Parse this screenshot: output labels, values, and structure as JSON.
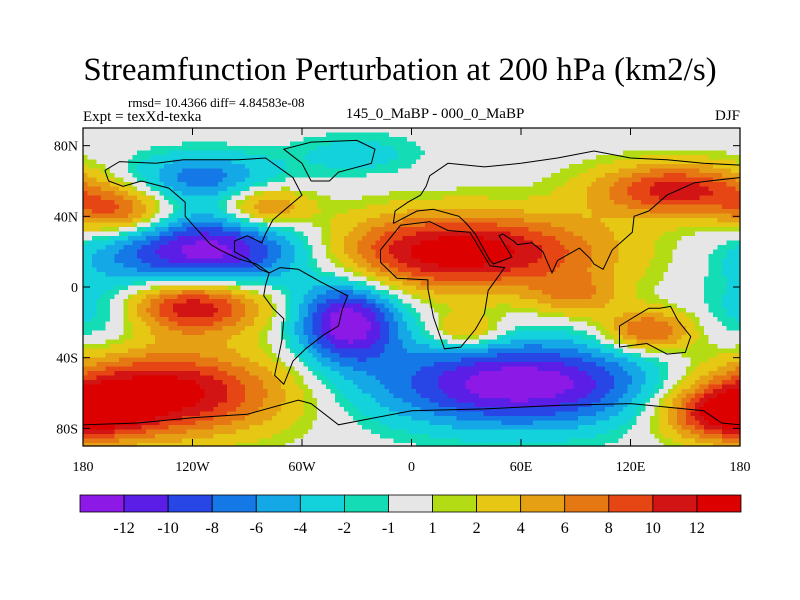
{
  "title": "Streamfunction Perturbation at 200 hPa (km2/s)",
  "stats": "rmsd= 10.4366 diff= 4.84583e-08",
  "expt": "Expt = texXd-texka",
  "diff_label": "145_0_MaBP - 000_0_MaBP",
  "season": "DJF",
  "chart_data": {
    "type": "heatmap",
    "title": "Streamfunction Perturbation at 200 hPa (km2/s)",
    "variable": "Streamfunction Perturbation",
    "level": "200 hPa",
    "units": "km2/s",
    "season": "DJF",
    "x_ticks": [
      "180",
      "120W",
      "60W",
      "0",
      "60E",
      "120E",
      "180"
    ],
    "x_tick_values": [
      -180,
      -120,
      -60,
      0,
      60,
      120,
      180
    ],
    "y_ticks": [
      "80N",
      "40N",
      "0",
      "40S",
      "80S"
    ],
    "y_tick_values": [
      80,
      40,
      0,
      -40,
      -80
    ],
    "xlim": [
      -180,
      180
    ],
    "ylim": [
      -90,
      90
    ],
    "contour_levels": [
      -12,
      -10,
      -8,
      -6,
      -4,
      -2,
      -1,
      1,
      2,
      4,
      6,
      8,
      10,
      12
    ],
    "colorbar_labels": [
      "-12",
      "-10",
      "-8",
      "-6",
      "-4",
      "-2",
      "-1",
      "1",
      "2",
      "4",
      "6",
      "8",
      "10",
      "12"
    ],
    "colors": [
      "#8c19e6",
      "#5a1ee6",
      "#2846e6",
      "#1478e6",
      "#14a8e6",
      "#14d2dc",
      "#14dcb4",
      "#e6e6e6",
      "#b4dc14",
      "#e6c814",
      "#e6a014",
      "#e67814",
      "#e64614",
      "#d21414",
      "#dc0000"
    ],
    "features": [
      {
        "value": -14,
        "lon": -110,
        "lat": 20,
        "rlon": 60,
        "rlat": 22,
        "note": "negative anomaly"
      },
      {
        "value": -14,
        "lon": -35,
        "lat": -20,
        "rlon": 28,
        "rlat": 23,
        "note": "negative anomaly"
      },
      {
        "value": -14,
        "lon": 60,
        "lat": -55,
        "rlon": 80,
        "rlat": 24,
        "note": "negative anomaly"
      },
      {
        "value": -7,
        "lon": -115,
        "lat": 62,
        "rlon": 40,
        "rlat": 14,
        "note": "negative anomaly"
      },
      {
        "value": -3,
        "lon": -30,
        "lat": 75,
        "rlon": 35,
        "rlat": 12,
        "note": "negative anomaly"
      },
      {
        "value": -4,
        "lon": -170,
        "lat": -15,
        "rlon": 30,
        "rlat": 20,
        "note": "negative anomaly"
      },
      {
        "value": 14,
        "lon": 25,
        "lat": 20,
        "rlon": 80,
        "rlat": 22,
        "note": "positive anomaly"
      },
      {
        "value": 14,
        "lon": -140,
        "lat": -60,
        "rlon": 70,
        "rlat": 24,
        "note": "positive anomaly"
      },
      {
        "value": 13,
        "lon": -120,
        "lat": -10,
        "rlon": 40,
        "rlat": 16,
        "note": "positive anomaly"
      },
      {
        "value": 11,
        "lon": 145,
        "lat": 55,
        "rlon": 45,
        "rlat": 15,
        "note": "positive anomaly"
      },
      {
        "value": 11,
        "lon": 175,
        "lat": -72,
        "rlon": 35,
        "rlat": 15,
        "note": "positive anomaly"
      },
      {
        "value": 9,
        "lon": 130,
        "lat": -25,
        "rlon": 25,
        "rlat": 12,
        "note": "positive anomaly"
      },
      {
        "value": 9,
        "lon": -160,
        "lat": 42,
        "rlon": 30,
        "rlat": 14,
        "note": "positive anomaly"
      },
      {
        "value": 8,
        "lon": -80,
        "lat": 45,
        "rlon": 25,
        "rlat": 12,
        "note": "positive anomaly"
      },
      {
        "value": 6,
        "lon": 30,
        "lat": -25,
        "rlon": 20,
        "rlat": 10,
        "note": "positive anomaly"
      },
      {
        "value": 5,
        "lon": 90,
        "lat": -5,
        "rlon": 25,
        "rlat": 12,
        "note": "positive anomaly"
      }
    ],
    "overlay": "coastlines",
    "grid": false
  }
}
